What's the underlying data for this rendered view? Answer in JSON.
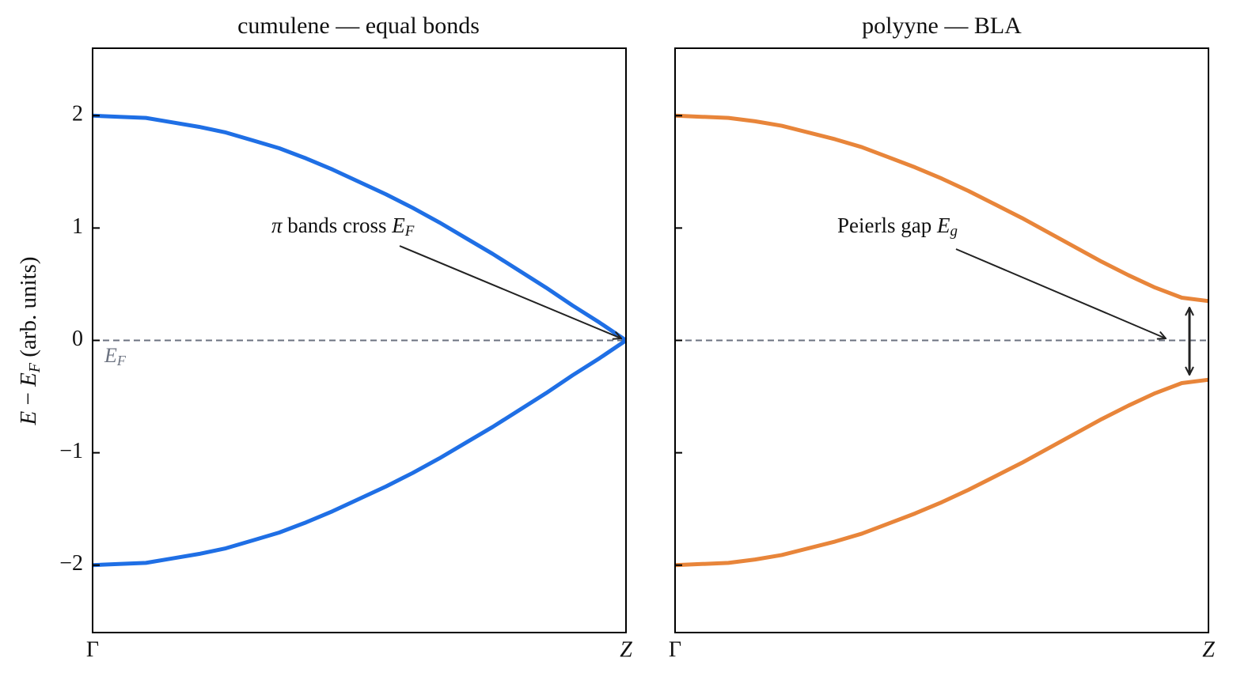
{
  "chart_data": [
    {
      "type": "line",
      "title": "cumulene — equal bonds",
      "ylabel": [
        "E",
        " − ",
        "E",
        "F",
        " (arb. units)"
      ],
      "annotation": [
        "π",
        " bands cross ",
        "E",
        "F"
      ],
      "hline": {
        "value": 0,
        "label": [
          "E",
          "F"
        ]
      },
      "x": [
        0,
        0.05,
        0.1,
        0.15,
        0.2,
        0.25,
        0.3,
        0.35,
        0.4,
        0.45,
        0.5,
        0.55,
        0.6,
        0.65,
        0.7,
        0.75,
        0.8,
        0.85,
        0.9,
        0.95,
        1
      ],
      "series": [
        {
          "color": "#1f6fe5",
          "values": [
            2,
            1.99,
            1.98,
            1.94,
            1.9,
            1.85,
            1.78,
            1.71,
            1.62,
            1.52,
            1.41,
            1.3,
            1.18,
            1.05,
            0.91,
            0.77,
            0.62,
            0.47,
            0.31,
            0.16,
            0
          ]
        },
        {
          "color": "#1f6fe5",
          "values": [
            -2,
            -1.99,
            -1.98,
            -1.94,
            -1.9,
            -1.85,
            -1.78,
            -1.71,
            -1.62,
            -1.52,
            -1.41,
            -1.3,
            -1.18,
            -1.05,
            -0.91,
            -0.77,
            -0.62,
            -0.47,
            -0.31,
            -0.16,
            0
          ]
        }
      ],
      "xlim": [
        0,
        1
      ],
      "xticks": [
        {
          "value": 0,
          "label": "Γ"
        },
        {
          "value": 1,
          "label": "Z"
        }
      ],
      "ylim": [
        -2.6,
        2.6
      ],
      "yticks": [
        {
          "value": -2,
          "label": "−2"
        },
        {
          "value": -1,
          "label": "−1"
        },
        0,
        1,
        2
      ]
    },
    {
      "type": "line",
      "title": "polyyne — BLA",
      "annotation": [
        "Peierls gap ",
        "E",
        "g"
      ],
      "hline": {
        "value": 0
      },
      "x": [
        0,
        0.05,
        0.1,
        0.15,
        0.2,
        0.25,
        0.3,
        0.35,
        0.4,
        0.45,
        0.5,
        0.55,
        0.6,
        0.65,
        0.7,
        0.75,
        0.8,
        0.85,
        0.9,
        0.95,
        1
      ],
      "series": [
        {
          "color": "#e8853a",
          "values": [
            2,
            1.99,
            1.98,
            1.95,
            1.91,
            1.85,
            1.79,
            1.72,
            1.63,
            1.54,
            1.44,
            1.33,
            1.21,
            1.09,
            0.96,
            0.83,
            0.7,
            0.58,
            0.47,
            0.38,
            0.35
          ]
        },
        {
          "color": "#e8853a",
          "values": [
            -2,
            -1.99,
            -1.98,
            -1.95,
            -1.91,
            -1.85,
            -1.79,
            -1.72,
            -1.63,
            -1.54,
            -1.44,
            -1.33,
            -1.21,
            -1.09,
            -0.96,
            -0.83,
            -0.7,
            -0.58,
            -0.47,
            -0.38,
            -0.35
          ]
        }
      ],
      "xlim": [
        0,
        1
      ],
      "xticks": [
        {
          "value": 0,
          "label": "Γ"
        },
        {
          "value": 1,
          "label": "Z"
        }
      ],
      "ylim": [
        -2.6,
        2.6
      ],
      "yticks": [
        -2,
        -1,
        0,
        1,
        2
      ]
    }
  ]
}
